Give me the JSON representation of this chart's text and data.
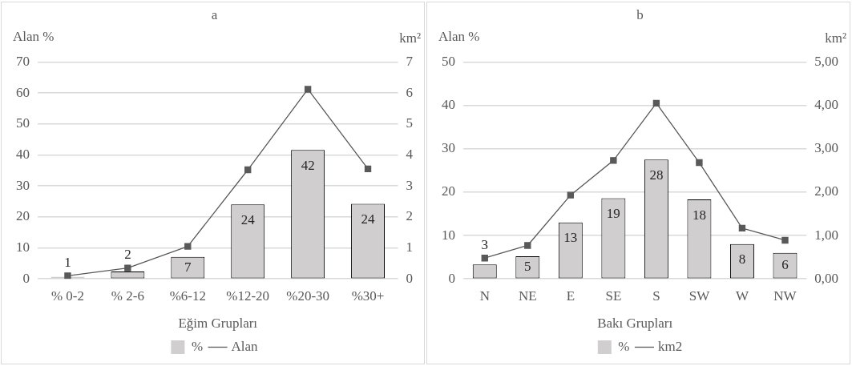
{
  "chart_data": [
    {
      "type": "bar",
      "title": "a",
      "xlabel": "Eğim Grupları",
      "ylabel": "Alan %",
      "y2label": "km²",
      "categories": [
        "% 0-2",
        "% 2-6",
        "%6-12",
        "%12-20",
        "%20-30",
        "%30+"
      ],
      "series": [
        {
          "name": "%",
          "color": "#d0cece",
          "values": [
            0.7,
            2.4,
            7.1,
            24,
            41.6,
            24.2
          ],
          "value_labels": [
            "1",
            "2",
            "7",
            "24",
            "42",
            "24"
          ]
        },
        {
          "name": "Alan",
          "type": "line",
          "axis": "y2",
          "color": "#595959",
          "values": [
            0.1,
            0.35,
            1.05,
            3.52,
            6.12,
            3.55
          ]
        }
      ],
      "ylim": [
        0,
        70
      ],
      "yticks": [
        0,
        10,
        20,
        30,
        40,
        50,
        60,
        70
      ],
      "y2lim": [
        0,
        7
      ],
      "y2ticks": [
        0,
        1,
        2,
        3,
        4,
        5,
        6,
        7
      ],
      "grid": "y",
      "legend": "bottom",
      "marker": "square",
      "line_style": "solid"
    },
    {
      "type": "bar",
      "title": "b",
      "xlabel": "Bakı Grupları",
      "ylabel": "Alan %",
      "y2label": "km²",
      "categories": [
        "N",
        "NE",
        "E",
        "SE",
        "S",
        "SW",
        "W",
        "NW"
      ],
      "series": [
        {
          "name": "%",
          "color": "#d0cece",
          "values": [
            3.3,
            5.2,
            13,
            18.6,
            27.5,
            18.3,
            8,
            6
          ],
          "value_labels": [
            "3",
            "5",
            "13",
            "19",
            "28",
            "18",
            "8",
            "6"
          ]
        },
        {
          "name": "km2",
          "type": "line",
          "axis": "y2",
          "color": "#595959",
          "values": [
            0.48,
            0.77,
            1.93,
            2.73,
            4.05,
            2.68,
            1.17,
            0.89
          ]
        }
      ],
      "ylim": [
        0,
        50
      ],
      "yticks": [
        0,
        10,
        20,
        30,
        40,
        50
      ],
      "y2lim": [
        0,
        5
      ],
      "y2ticks": [
        {
          "value": 0,
          "label": "0,00"
        },
        {
          "value": 1,
          "label": "1,00"
        },
        {
          "value": 2,
          "label": "2,00"
        },
        {
          "value": 3,
          "label": "3,00"
        },
        {
          "value": 4,
          "label": "4,00"
        },
        {
          "value": 5,
          "label": "5,00"
        }
      ],
      "grid": "y",
      "legend": "bottom",
      "marker": "square",
      "line_style": "solid"
    }
  ]
}
